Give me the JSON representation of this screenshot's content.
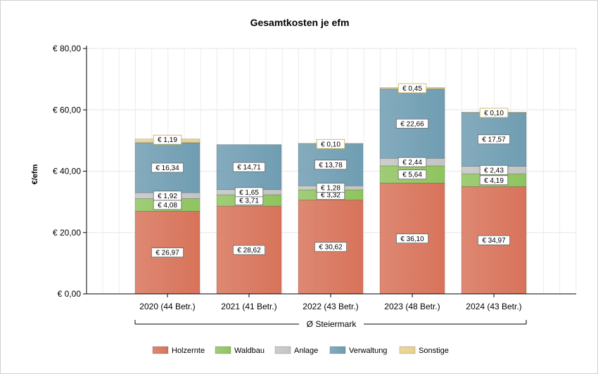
{
  "chart_data": {
    "type": "bar",
    "stacked": true,
    "title": "Gesamtkosten je efm",
    "ylabel": "€/efm",
    "xlabel": "",
    "ylim": [
      0,
      80
    ],
    "yticks": [
      0,
      20,
      40,
      60,
      80
    ],
    "ytick_labels": [
      "€ 0,00",
      "€ 20,00",
      "€ 40,00",
      "€ 60,00",
      "€ 80,00"
    ],
    "grid": true,
    "legend_position": "bottom",
    "group_label": "Ø Steiermark",
    "categories": [
      "2020 (44 Betr.)",
      "2021 (41 Betr.)",
      "2022 (43 Betr.)",
      "2023 (48 Betr.)",
      "2024 (43 Betr.)"
    ],
    "series": [
      {
        "name": "Holzernte",
        "color": "#d8735a",
        "values": [
          26.97,
          28.62,
          30.62,
          36.1,
          34.97
        ],
        "labels": [
          "€ 26,97",
          "€ 28,62",
          "€ 30,62",
          "€ 36,10",
          "€ 34,97"
        ]
      },
      {
        "name": "Waldbau",
        "color": "#8fc45f",
        "values": [
          4.08,
          3.71,
          3.32,
          5.64,
          4.19
        ],
        "labels": [
          "€ 4,08",
          "€ 3,71",
          "€ 3,32",
          "€ 5,64",
          "€ 4,19"
        ]
      },
      {
        "name": "Anlage",
        "color": "#c4c4c4",
        "values": [
          1.92,
          1.65,
          1.28,
          2.44,
          2.43
        ],
        "labels": [
          "€ 1,92",
          "€ 1,65",
          "€ 1,28",
          "€ 2,44",
          "€ 2,43"
        ]
      },
      {
        "name": "Verwaltung",
        "color": "#6f9db2",
        "values": [
          16.34,
          14.71,
          13.78,
          22.66,
          17.57
        ],
        "labels": [
          "€ 16,34",
          "€ 14,71",
          "€ 13,78",
          "€ 22,66",
          "€ 17,57"
        ]
      },
      {
        "name": "Sonstige",
        "color": "#e8d08e",
        "values": [
          1.19,
          0,
          0.1,
          0.45,
          0.1
        ],
        "labels": [
          "€ 1,19",
          "",
          "€ 0,10",
          "€ 0,45",
          "€ 0,10"
        ]
      }
    ]
  }
}
